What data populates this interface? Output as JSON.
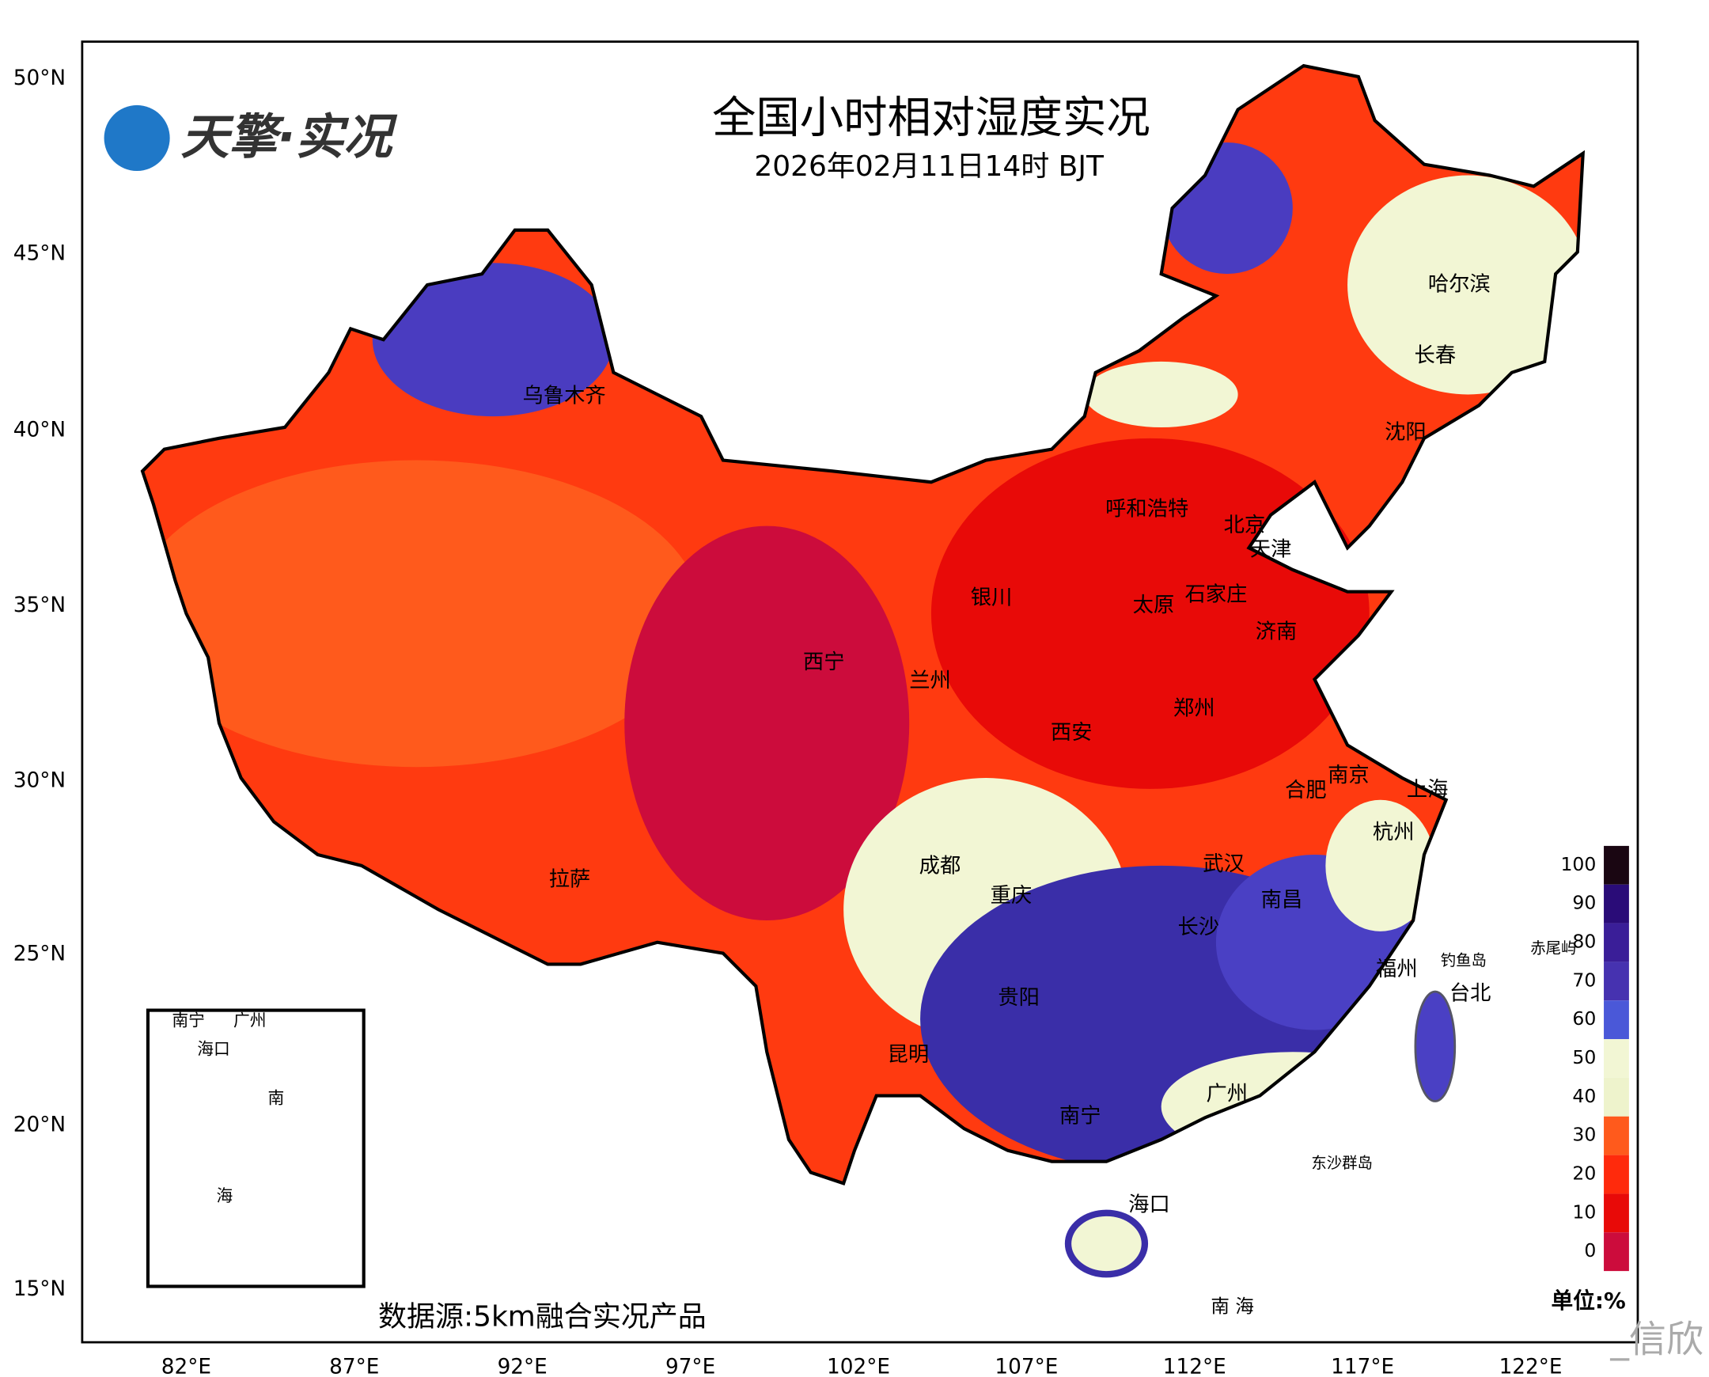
{
  "header": {
    "logo": "天擎·实况",
    "title": "全国小时相对湿度实况",
    "subtitle": "2026年02月11日14时 BJT"
  },
  "axes": {
    "lat_labels": [
      "50°N",
      "45°N",
      "40°N",
      "35°N",
      "30°N",
      "25°N",
      "20°N",
      "15°N"
    ],
    "lon_labels": [
      "82°E",
      "87°E",
      "92°E",
      "97°E",
      "102°E",
      "107°E",
      "112°E",
      "117°E",
      "122°E"
    ]
  },
  "cities": [
    "乌鲁木齐",
    "哈尔滨",
    "长春",
    "沈阳",
    "呼和浩特",
    "北京",
    "天津",
    "银川",
    "石家庄",
    "太原",
    "济南",
    "西宁",
    "兰州",
    "郑州",
    "西安",
    "南京",
    "上海",
    "合肥",
    "杭州",
    "成都",
    "武汉",
    "拉萨",
    "重庆",
    "南昌",
    "长沙",
    "福州",
    "台北",
    "贵阳",
    "昆明",
    "广州",
    "南宁",
    "海口"
  ],
  "islands": [
    "钓鱼岛",
    "赤尾屿",
    "东沙群岛",
    "南 海"
  ],
  "inset": {
    "labels": [
      "南宁",
      "广州",
      "海口",
      "南",
      "海"
    ]
  },
  "colorbar": {
    "ticks": [
      100,
      90,
      80,
      70,
      60,
      50,
      40,
      30,
      20,
      10,
      0
    ],
    "colors": [
      "#1a0612",
      "#2a0c78",
      "#3a1e98",
      "#4632b0",
      "#4a58d8",
      "#f2f6d4",
      "#eef3cc",
      "#ff5a1c",
      "#ff2a0c",
      "#e80a08",
      "#cc0c3c"
    ],
    "unit": "单位:%"
  },
  "source": "数据源:5km融合实况产品",
  "watermark": "_信欣"
}
